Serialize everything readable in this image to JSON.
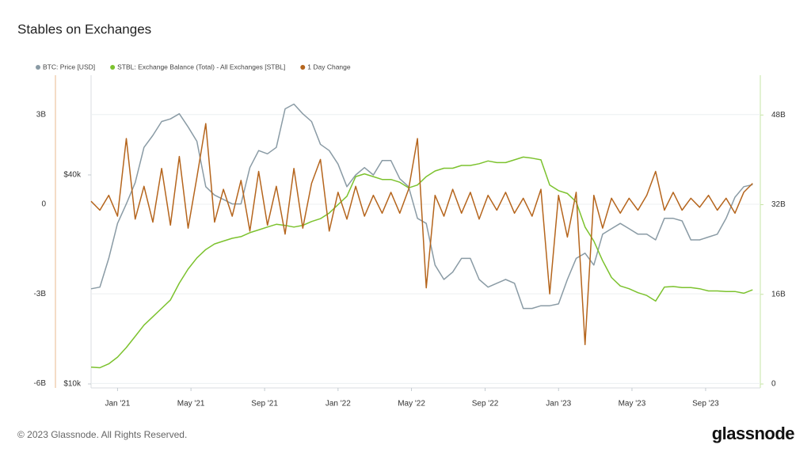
{
  "chart_data": {
    "type": "line",
    "title": "Stables on Exchanges",
    "x": [
      2020.88,
      2020.92,
      2020.96,
      2021.0,
      2021.04,
      2021.08,
      2021.12,
      2021.16,
      2021.2,
      2021.24,
      2021.28,
      2021.32,
      2021.36,
      2021.4,
      2021.44,
      2021.48,
      2021.52,
      2021.56,
      2021.6,
      2021.64,
      2021.68,
      2021.72,
      2021.76,
      2021.8,
      2021.84,
      2021.88,
      2021.92,
      2021.96,
      2022.0,
      2022.04,
      2022.08,
      2022.12,
      2022.16,
      2022.2,
      2022.24,
      2022.28,
      2022.32,
      2022.36,
      2022.4,
      2022.44,
      2022.48,
      2022.52,
      2022.56,
      2022.6,
      2022.64,
      2022.68,
      2022.72,
      2022.76,
      2022.8,
      2022.84,
      2022.88,
      2022.92,
      2022.96,
      2023.0,
      2023.04,
      2023.08,
      2023.12,
      2023.16,
      2023.2,
      2023.24,
      2023.28,
      2023.32,
      2023.36,
      2023.4,
      2023.44,
      2023.48,
      2023.52,
      2023.56,
      2023.6,
      2023.64,
      2023.68,
      2023.72,
      2023.76,
      2023.8,
      2023.84,
      2023.88
    ],
    "xlim": [
      2020.88,
      2023.915
    ],
    "xticks": [
      {
        "value": 2021.0,
        "label": "Jan '21"
      },
      {
        "value": 2021.333,
        "label": "May '21"
      },
      {
        "value": 2021.667,
        "label": "Sep '21"
      },
      {
        "value": 2022.0,
        "label": "Jan '22"
      },
      {
        "value": 2022.333,
        "label": "May '22"
      },
      {
        "value": 2022.667,
        "label": "Sep '22"
      },
      {
        "value": 2023.0,
        "label": "Jan '23"
      },
      {
        "value": 2023.333,
        "label": "May '23"
      },
      {
        "value": 2023.667,
        "label": "Sep '23"
      }
    ],
    "ylim": [
      -6150000000.0,
      4320000000.0
    ],
    "yticks": [
      {
        "value": -6000000000.0,
        "label": "-6B"
      },
      {
        "value": -3000000000.0,
        "label": "-3B"
      },
      0,
      {
        "value": 3000000000.0,
        "label": "3B"
      }
    ],
    "y2lim": [
      -700000000.0,
      55100000000.0
    ],
    "y2ticks": [
      0,
      {
        "value": 16000000000.0,
        "label": "16B"
      },
      {
        "value": 32000000000.0,
        "label": "32B"
      },
      {
        "value": 48000000000.0,
        "label": "48B"
      }
    ],
    "y3lim": [
      9740,
      77500
    ],
    "y3scale": "log",
    "y3ticks": [
      {
        "value": 10000,
        "label": "$10k"
      },
      {
        "value": 40000,
        "label": "$40k"
      }
    ],
    "grid": true,
    "legend": "top-left",
    "series": [
      {
        "name": "BTC: Price [USD]",
        "color": "#8a9ba5",
        "axis": "y3",
        "values": [
          18800,
          19000,
          23000,
          29000,
          33000,
          38000,
          48000,
          52000,
          57000,
          58000,
          60000,
          55000,
          50000,
          37000,
          35000,
          34000,
          33000,
          33000,
          42000,
          47000,
          46000,
          48000,
          62000,
          64000,
          60000,
          57000,
          49000,
          47000,
          43000,
          37000,
          40000,
          42000,
          40000,
          44000,
          44000,
          39000,
          37000,
          30000,
          29000,
          22000,
          20000,
          21000,
          23000,
          23000,
          20000,
          19000,
          19500,
          20000,
          19500,
          16500,
          16500,
          16800,
          16800,
          17000,
          20000,
          23000,
          23800,
          22000,
          27000,
          28000,
          29000,
          28000,
          27000,
          27000,
          26000,
          30000,
          30000,
          29500,
          26000,
          26000,
          26500,
          27000,
          30000,
          34500,
          37000,
          37500
        ]
      },
      {
        "name": "STBL: Exchange Balance (Total) - All Exchanges [STBL]",
        "color": "#7cc22e",
        "axis": "y2",
        "values": [
          3000000000.0,
          2900000000.0,
          3600000000.0,
          4800000000.0,
          6500000000.0,
          8500000000.0,
          10500000000.0,
          12000000000.0,
          13500000000.0,
          15000000000.0,
          18000000000.0,
          20500000000.0,
          22500000000.0,
          24000000000.0,
          25000000000.0,
          25500000000.0,
          26000000000.0,
          26300000000.0,
          27000000000.0,
          27500000000.0,
          28000000000.0,
          28500000000.0,
          28300000000.0,
          28000000000.0,
          28300000000.0,
          29000000000.0,
          29500000000.0,
          30500000000.0,
          32000000000.0,
          33500000000.0,
          37000000000.0,
          37500000000.0,
          37000000000.0,
          36500000000.0,
          36500000000.0,
          36000000000.0,
          35000000000.0,
          35500000000.0,
          37000000000.0,
          38000000000.0,
          38500000000.0,
          38500000000.0,
          39000000000.0,
          39000000000.0,
          39300000000.0,
          39800000000.0,
          39500000000.0,
          39500000000.0,
          40000000000.0,
          40500000000.0,
          40300000000.0,
          40000000000.0,
          35500000000.0,
          34500000000.0,
          34000000000.0,
          32500000000.0,
          28000000000.0,
          25500000000.0,
          22000000000.0,
          19000000000.0,
          17500000000.0,
          17000000000.0,
          16300000000.0,
          15800000000.0,
          14800000000.0,
          17300000000.0,
          17400000000.0,
          17200000000.0,
          17200000000.0,
          17000000000.0,
          16600000000.0,
          16600000000.0,
          16500000000.0,
          16500000000.0,
          16200000000.0,
          16800000000.0
        ]
      },
      {
        "name": "1 Day Change",
        "color": "#b5651d",
        "axis": "y",
        "values": [
          100000000.0,
          -200000000.0,
          300000000.0,
          -400000000.0,
          2200000000.0,
          -500000000.0,
          600000000.0,
          -600000000.0,
          1200000000.0,
          -700000000.0,
          1600000000.0,
          -800000000.0,
          900000000.0,
          2700000000.0,
          -600000000.0,
          500000000.0,
          -400000000.0,
          800000000.0,
          -900000000.0,
          1100000000.0,
          -700000000.0,
          600000000.0,
          -1000000000.0,
          1200000000.0,
          -800000000.0,
          700000000.0,
          1500000000.0,
          -900000000.0,
          400000000.0,
          -500000000.0,
          600000000.0,
          -400000000.0,
          300000000.0,
          -300000000.0,
          400000000.0,
          -300000000.0,
          500000000.0,
          2200000000.0,
          -2800000000.0,
          300000000.0,
          -400000000.0,
          500000000.0,
          -300000000.0,
          400000000.0,
          -500000000.0,
          300000000.0,
          -200000000.0,
          400000000.0,
          -300000000.0,
          200000000.0,
          -400000000.0,
          500000000.0,
          -3000000000.0,
          300000000.0,
          -1100000000.0,
          400000000.0,
          -4700000000.0,
          300000000.0,
          -800000000.0,
          200000000.0,
          -300000000.0,
          200000000.0,
          -200000000.0,
          300000000.0,
          1100000000.0,
          -200000000.0,
          400000000.0,
          -200000000.0,
          200000000.0,
          -100000000.0,
          300000000.0,
          -200000000.0,
          200000000.0,
          -300000000.0,
          400000000.0,
          700000000.0
        ]
      }
    ]
  },
  "footer": {
    "copyright": "© 2023 Glassnode. All Rights Reserved.",
    "brand": "glassnode"
  }
}
